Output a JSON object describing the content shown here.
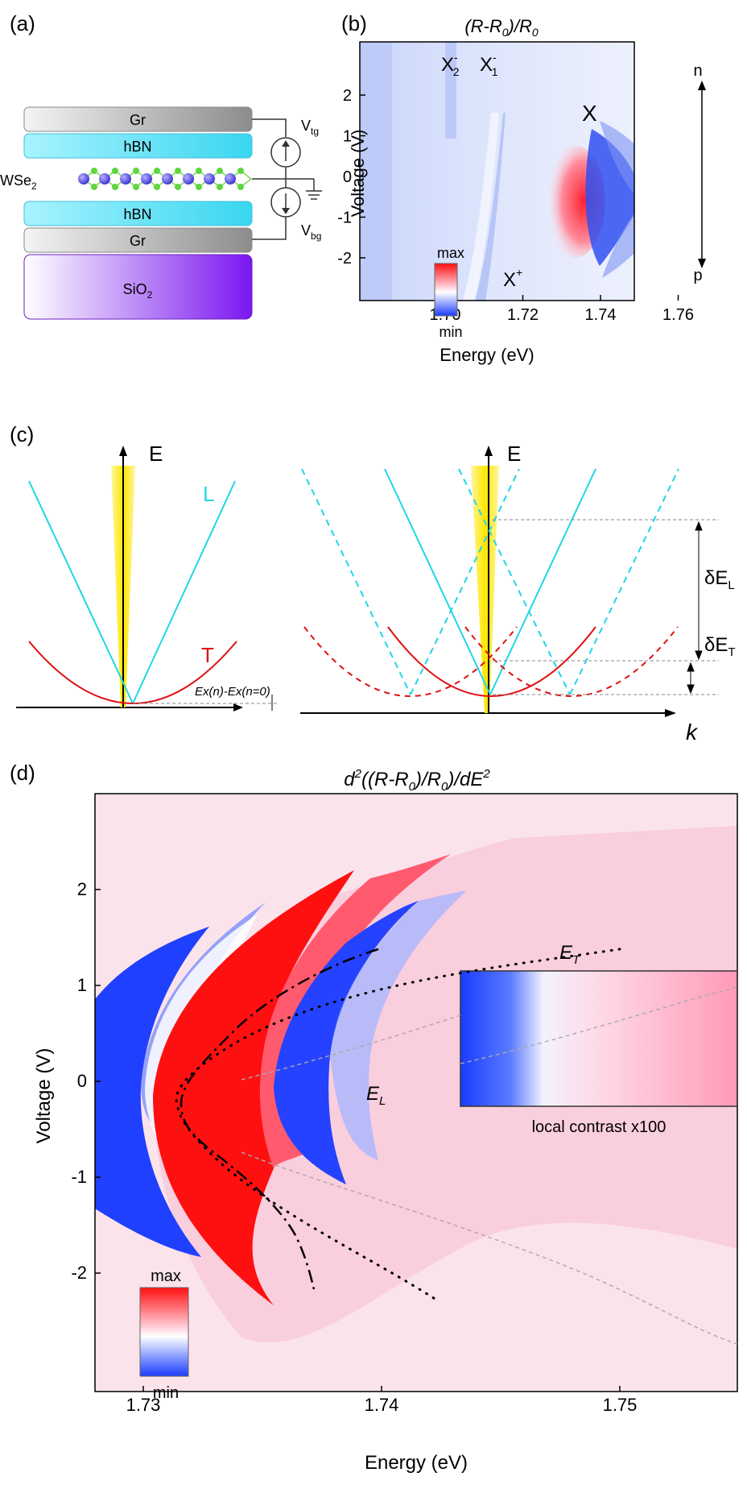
{
  "panel_labels": {
    "a": "(a)",
    "b": "(b)",
    "c": "(c)",
    "d": "(d)"
  },
  "panel_a": {
    "layers": {
      "top_gr": "Gr",
      "top_hbn": "hBN",
      "bottom_hbn": "hBN",
      "bottom_gr": "Gr",
      "substrate": "SiO",
      "substrate_sub": "2"
    },
    "material": "WSe",
    "material_sub": "2",
    "v_top": "V",
    "v_top_sub": "tg",
    "v_bottom": "V",
    "v_bottom_sub": "bg"
  },
  "panel_b": {
    "title_main": "(R-R",
    "title_sub": "0",
    "title_mid": ")/R",
    "title_sub2": "0",
    "xlabel": "Energy (eV)",
    "ylabel": "Voltage (V)",
    "xticks": [
      "1.70",
      "1.72",
      "1.74",
      "1.76"
    ],
    "yticks": [
      "2",
      "1",
      "0",
      "-1",
      "-2"
    ],
    "labels": {
      "x2": "X",
      "x2_sub": "2",
      "x1": "X",
      "x1_sub": "1",
      "minus": "-",
      "x": "X",
      "xplus": "X",
      "plus": "+",
      "n": "n",
      "p": "p"
    },
    "colorbar": {
      "max": "max",
      "min": "min"
    }
  },
  "panel_c": {
    "axis_e": "E",
    "axis_k": "k",
    "label_L": "L",
    "label_T": "T",
    "delta_el": "δE",
    "delta_el_sub": "L",
    "delta_et": "δE",
    "delta_et_sub": "T",
    "ex_label": "Ex(n)-Ex(n=0)"
  },
  "panel_d": {
    "title": "d",
    "title_sup": "2",
    "title_rest": "((R-R",
    "title_sub": "0",
    "title_rest2": ")/R",
    "title_sub2": "0",
    "title_rest3": ")/dE",
    "title_sup2": "2",
    "xlabel": "Energy (eV)",
    "ylabel": "Voltage (V)",
    "xticks": [
      "1.73",
      "1.74",
      "1.75"
    ],
    "yticks": [
      "2",
      "1",
      "0",
      "-1",
      "-2"
    ],
    "label_et": "E",
    "label_et_sub": "T",
    "label_el": "E",
    "label_el_sub": "L",
    "inset_caption": "local contrast x100",
    "colorbar": {
      "max": "max",
      "min": "min"
    }
  },
  "colors": {
    "red": "#ff0a0a",
    "blue": "#1a3cff",
    "cyan": "#1fd6e6",
    "hbn": "#4fe0f5",
    "gr": "#9a9a9a",
    "sio2": "#8a2be2",
    "yellow": "#ffee00"
  }
}
